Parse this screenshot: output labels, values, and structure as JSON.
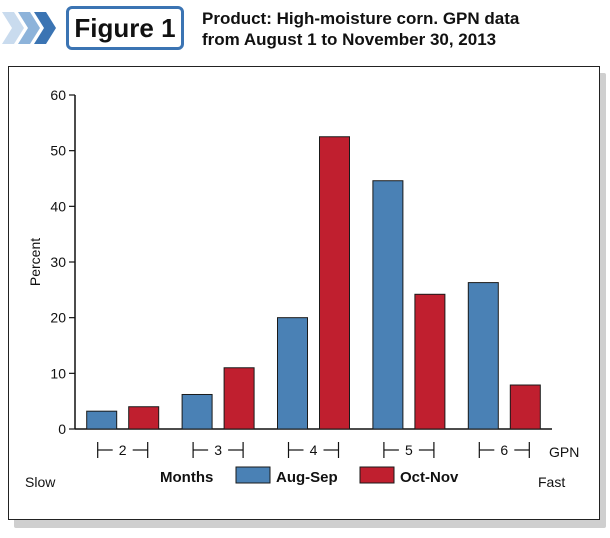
{
  "figure": {
    "badge": "Figure 1",
    "title": "Product: High-moisture corn. GPN data\nfrom August 1 to November 30, 2013"
  },
  "chart_data": {
    "type": "bar",
    "title": "Product: High-moisture corn. GPN data from August 1 to November 30, 2013",
    "categories": [
      "2",
      "3",
      "4",
      "5",
      "6"
    ],
    "category_label": "GPN",
    "xlabel": "Months",
    "ylabel": "Percent",
    "ylim": [
      0,
      60
    ],
    "yticks": [
      0,
      10,
      20,
      30,
      40,
      50,
      60
    ],
    "slow_label": "Slow",
    "fast_label": "Fast",
    "grid": false,
    "legend_position": "bottom",
    "series": [
      {
        "name": "Aug-Sep",
        "color": "#4a81b5",
        "values": [
          3.2,
          6.2,
          20.0,
          44.6,
          26.3
        ]
      },
      {
        "name": "Oct-Nov",
        "color": "#c01f2f",
        "values": [
          4.0,
          11.0,
          52.5,
          24.2,
          7.9
        ]
      }
    ]
  }
}
